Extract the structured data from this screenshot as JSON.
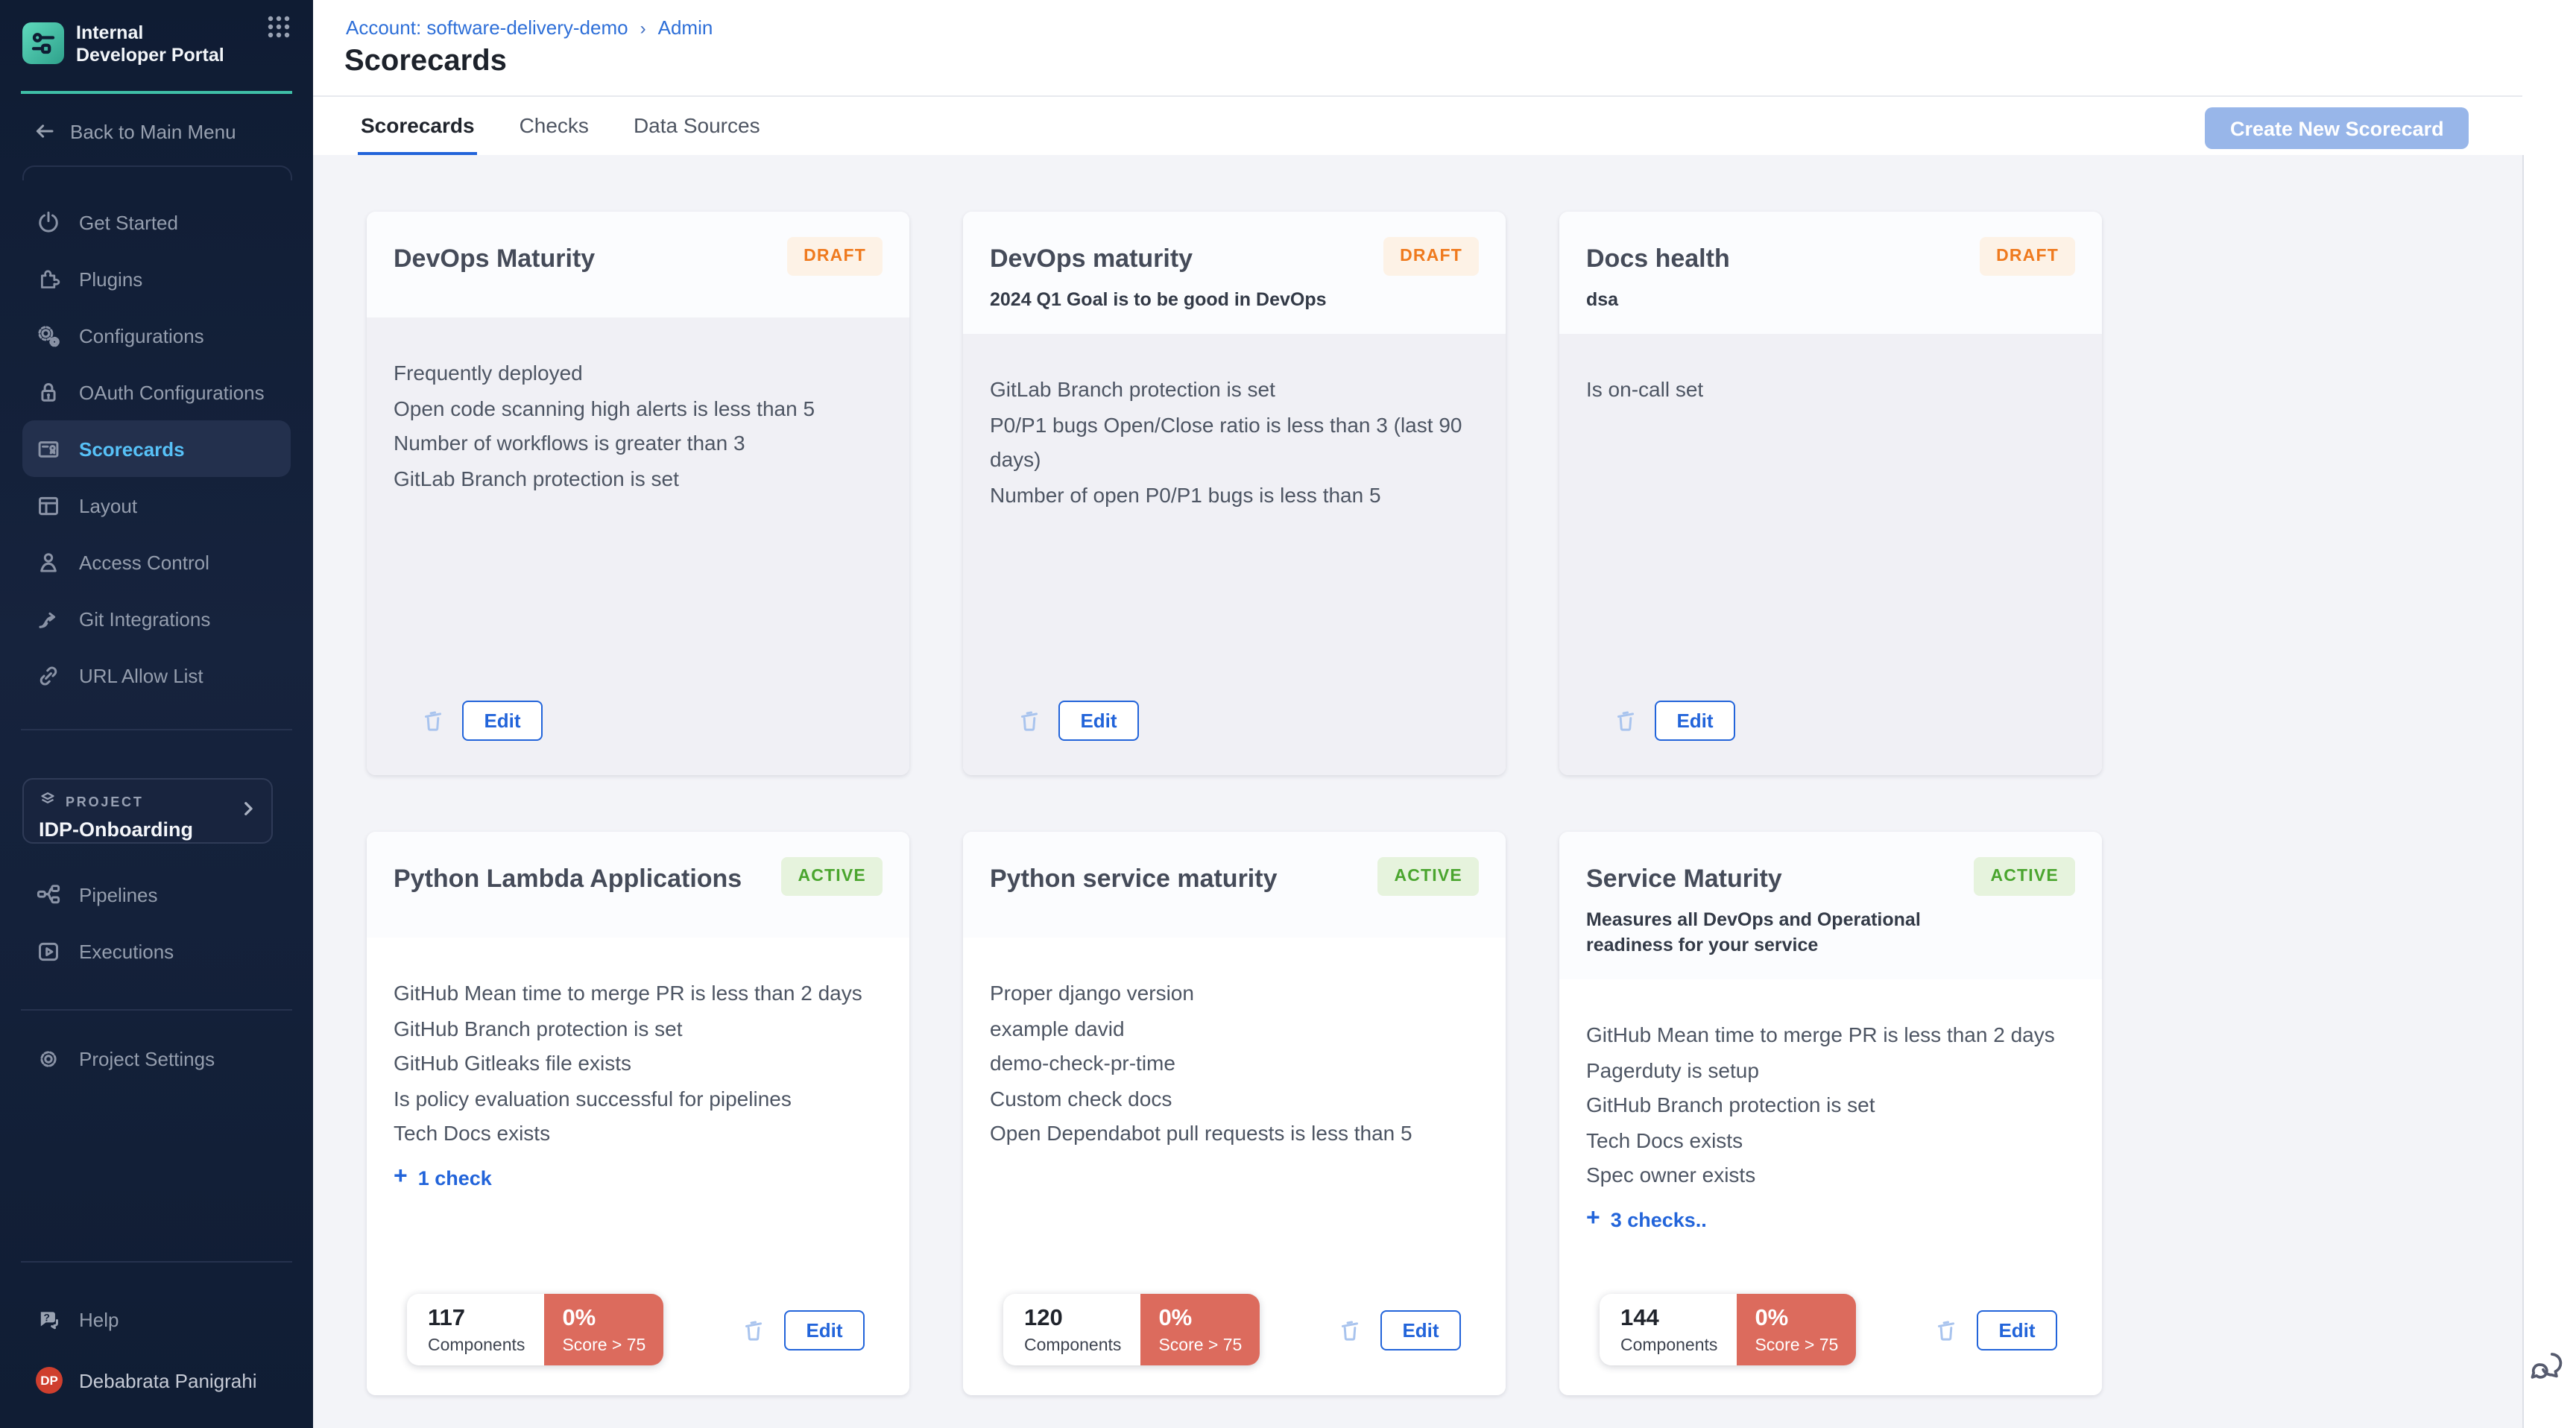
{
  "sidebar": {
    "logo_title": "Internal Developer Portal",
    "back_label": "Back to Main Menu",
    "nav": [
      {
        "label": "Get Started",
        "icon": "power",
        "active": false
      },
      {
        "label": "Plugins",
        "icon": "puzzle",
        "active": false
      },
      {
        "label": "Configurations",
        "icon": "gears",
        "active": false
      },
      {
        "label": "OAuth Configurations",
        "icon": "lock",
        "active": false
      },
      {
        "label": "Scorecards",
        "icon": "scorecard",
        "active": true
      },
      {
        "label": "Layout",
        "icon": "layout",
        "active": false
      },
      {
        "label": "Access Control",
        "icon": "person",
        "active": false
      },
      {
        "label": "Git Integrations",
        "icon": "git",
        "active": false
      },
      {
        "label": "URL Allow List",
        "icon": "link",
        "active": false
      }
    ],
    "project_label": "PROJECT",
    "project_name": "IDP-Onboarding",
    "project_nav": [
      {
        "label": "Pipelines",
        "icon": "pipelines"
      },
      {
        "label": "Executions",
        "icon": "play"
      }
    ],
    "settings_label": "Project Settings",
    "help_label": "Help",
    "user_initials": "DP",
    "user_name": "Debabrata Panigrahi"
  },
  "header": {
    "breadcrumb": {
      "account": "Account: software-delivery-demo",
      "separator": "›",
      "admin": "Admin"
    },
    "title": "Scorecards",
    "tabs": [
      "Scorecards",
      "Checks",
      "Data Sources"
    ],
    "active_tab": 0,
    "create_button": "Create New Scorecard"
  },
  "cards": [
    {
      "title": "DevOps Maturity",
      "status": "DRAFT",
      "subtitle": "",
      "checks": [
        "Frequently deployed",
        "Open code scanning high alerts is less than 5",
        "Number of workflows is greater than 3",
        "GitLab Branch protection is set"
      ],
      "more": "",
      "stats": null,
      "edit_label": "Edit"
    },
    {
      "title": "DevOps maturity",
      "status": "DRAFT",
      "subtitle": "2024 Q1 Goal is to be good in DevOps",
      "checks": [
        "GitLab Branch protection is set",
        "P0/P1 bugs Open/Close ratio is less than 3 (last 90 days)",
        "Number of open P0/P1 bugs is less than 5"
      ],
      "more": "",
      "stats": null,
      "edit_label": "Edit"
    },
    {
      "title": "Docs health",
      "status": "DRAFT",
      "subtitle": "dsa",
      "checks": [
        "Is on-call set"
      ],
      "more": "",
      "stats": null,
      "edit_label": "Edit"
    },
    {
      "title": "Python Lambda Applications",
      "status": "ACTIVE",
      "subtitle": "",
      "checks": [
        "GitHub Mean time to merge PR is less than 2 days",
        "GitHub Branch protection is set",
        "GitHub Gitleaks file exists",
        "Is policy evaluation successful for pipelines",
        "Tech Docs exists"
      ],
      "more": "1 check",
      "stats": {
        "components": "117",
        "components_label": "Components",
        "score": "0%",
        "score_label": "Score > 75"
      },
      "edit_label": "Edit"
    },
    {
      "title": "Python service maturity",
      "status": "ACTIVE",
      "subtitle": "",
      "checks": [
        "Proper django version",
        "example david",
        "demo-check-pr-time",
        "Custom check docs",
        "Open Dependabot pull requests is less than 5"
      ],
      "more": "",
      "stats": {
        "components": "120",
        "components_label": "Components",
        "score": "0%",
        "score_label": "Score > 75"
      },
      "edit_label": "Edit"
    },
    {
      "title": "Service Maturity",
      "status": "ACTIVE",
      "subtitle": "Measures all DevOps and Operational readiness for your service",
      "checks": [
        "GitHub Mean time to merge PR is less than 2 days",
        "Pagerduty is setup",
        "GitHub Branch protection is set",
        "Tech Docs exists",
        "Spec owner exists"
      ],
      "more": "3 checks..",
      "stats": {
        "components": "144",
        "components_label": "Components",
        "score": "0%",
        "score_label": "Score > 75"
      },
      "edit_label": "Edit"
    }
  ],
  "colors": {
    "accent_blue": "#2264DA",
    "sidebar_active_text": "#57C1F7",
    "teal": "#3FBFA7",
    "draft_text": "#EF7A1E",
    "draft_bg": "#FDF2E6",
    "active_text": "#4AA52E",
    "active_bg": "#E6F3DD",
    "score_badge_bg": "#DC6B5D",
    "create_button_bg": "#98B6E9"
  }
}
